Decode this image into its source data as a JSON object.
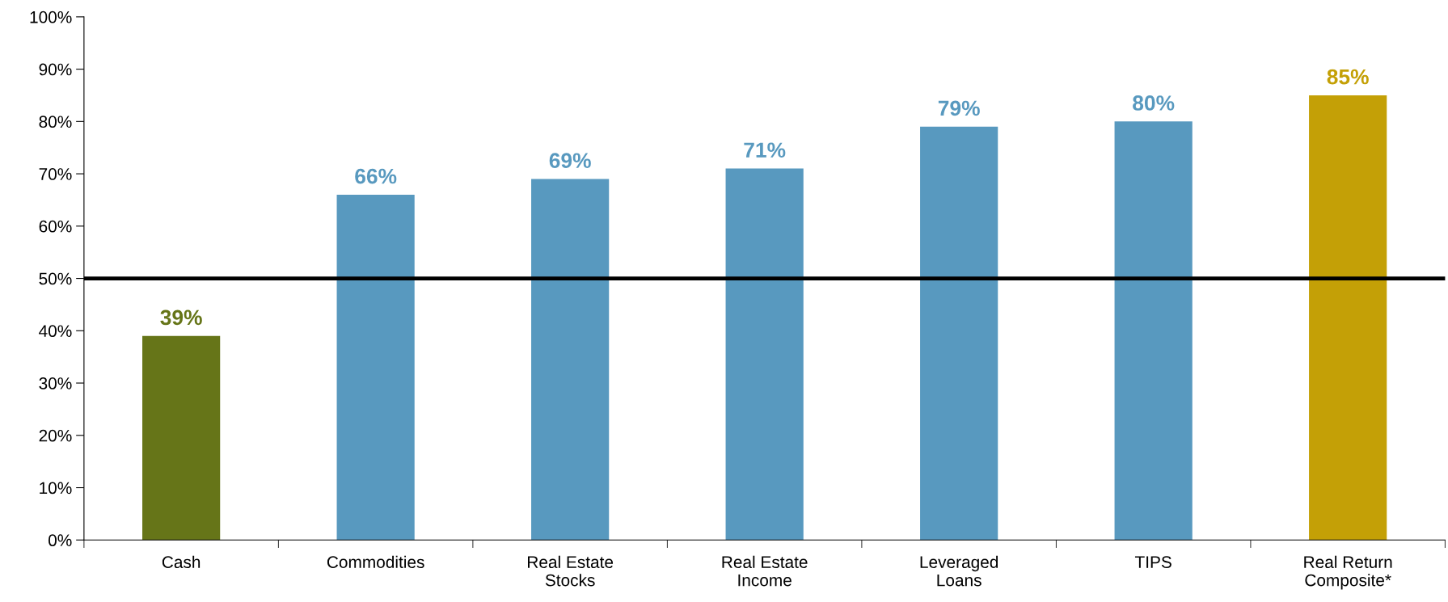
{
  "chart_data": {
    "type": "bar",
    "categories": [
      "Cash",
      "Commodities",
      "Real Estate\nStocks",
      "Real Estate\nIncome",
      "Leveraged\nLoans",
      "TIPS",
      "Real Return\nComposite*"
    ],
    "values": [
      39,
      66,
      69,
      71,
      79,
      80,
      85
    ],
    "colors": [
      "#667518",
      "#5899bf",
      "#5899bf",
      "#5899bf",
      "#5899bf",
      "#5899bf",
      "#c4a006"
    ],
    "value_labels": [
      "39%",
      "66%",
      "69%",
      "71%",
      "79%",
      "80%",
      "85%"
    ],
    "ylim": [
      0,
      100
    ],
    "yticks": [
      {
        "value": 0,
        "label": "0%"
      },
      {
        "value": 10,
        "label": "10%"
      },
      {
        "value": 20,
        "label": "20%"
      },
      {
        "value": 30,
        "label": "30%"
      },
      {
        "value": 40,
        "label": "40%"
      },
      {
        "value": 50,
        "label": "50%"
      },
      {
        "value": 60,
        "label": "60%"
      },
      {
        "value": 70,
        "label": "70%"
      },
      {
        "value": 80,
        "label": "80%"
      },
      {
        "value": 90,
        "label": "90%"
      },
      {
        "value": 100,
        "label": "100%"
      }
    ],
    "ref_lines": [
      {
        "axis": "y",
        "value": 50,
        "color": "#000000",
        "line_style": "solid"
      }
    ]
  }
}
